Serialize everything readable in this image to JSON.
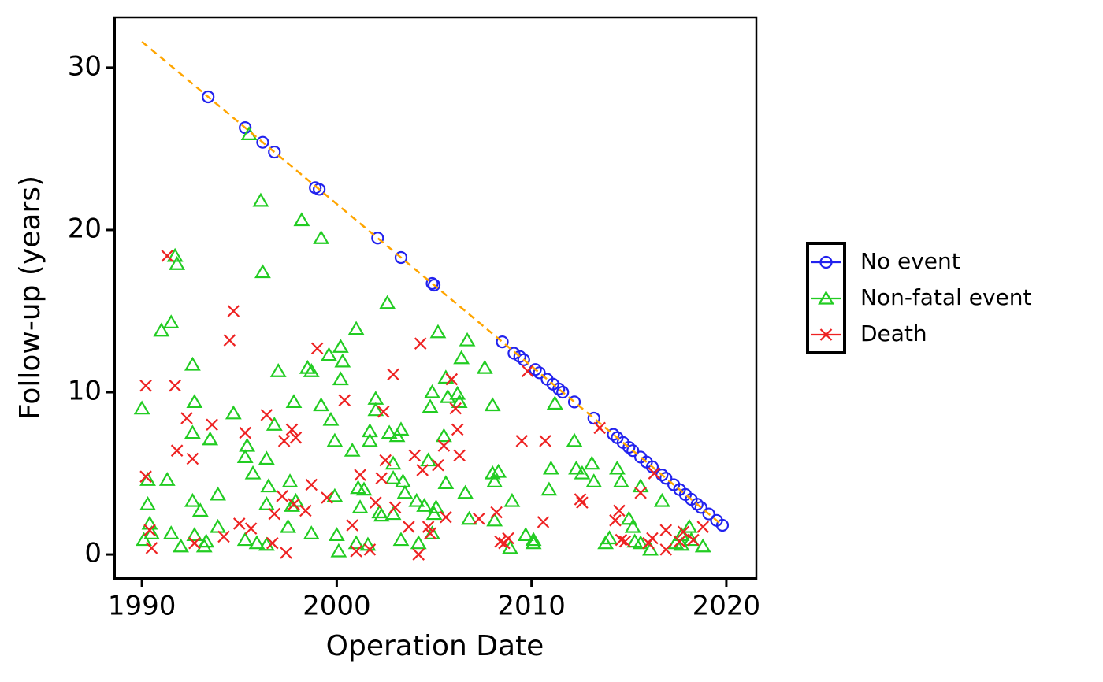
{
  "chart_data": {
    "type": "scatter",
    "x_label": "Operation Date",
    "y_label": "Follow-up (years)",
    "xlim": [
      1988.58,
      2021.54
    ],
    "ylim": [
      -1.5,
      33.1
    ],
    "xticks": [
      1990,
      2000,
      2010,
      2020
    ],
    "yticks": [
      0,
      10,
      20,
      30
    ],
    "legend_position": "right",
    "reference_line": {
      "color": "#ffa500",
      "dash": true,
      "x": [
        1990,
        2019.8
      ],
      "y": [
        31.6,
        1.8
      ]
    },
    "series": [
      {
        "name": "No event",
        "color": "#2222ee",
        "marker": "circle",
        "x": [
          1993.4,
          1995.3,
          1996.2,
          1996.8,
          1998.9,
          1999.1,
          2002.1,
          2003.3,
          2004.9,
          2005.0,
          2008.5,
          2009.1,
          2009.4,
          2009.6,
          2010.2,
          2010.4,
          2010.8,
          2011.1,
          2011.4,
          2011.6,
          2012.2,
          2013.2,
          2014.2,
          2014.4,
          2014.7,
          2015.0,
          2015.2,
          2015.6,
          2015.9,
          2016.2,
          2016.7,
          2016.9,
          2017.3,
          2017.6,
          2017.9,
          2018.2,
          2018.5,
          2018.7,
          2019.1,
          2019.5,
          2019.8
        ],
        "values": [
          28.2,
          26.3,
          25.4,
          24.8,
          22.6,
          22.5,
          19.5,
          18.3,
          16.7,
          16.6,
          13.1,
          12.4,
          12.2,
          12.0,
          11.4,
          11.2,
          10.8,
          10.5,
          10.2,
          10.0,
          9.4,
          8.4,
          7.4,
          7.2,
          6.9,
          6.6,
          6.4,
          6.0,
          5.7,
          5.4,
          4.9,
          4.7,
          4.3,
          4.0,
          3.7,
          3.4,
          3.1,
          2.9,
          2.5,
          2.1,
          1.8
        ]
      },
      {
        "name": "Non-fatal event",
        "color": "#22cc22",
        "marker": "triangle",
        "x": [
          1990.0,
          1990.3,
          1990.4,
          1990.1,
          1990.5,
          1990.3,
          1991.0,
          1991.3,
          1991.5,
          1991.7,
          1991.8,
          1991.5,
          1992.0,
          1992.6,
          1992.7,
          1992.6,
          1992.6,
          1993.0,
          1992.7,
          1993.2,
          1993.3,
          1993.5,
          1993.9,
          1993.9,
          1994.7,
          1995.5,
          1995.3,
          1995.4,
          1995.3,
          1995.7,
          1995.9,
          1996.1,
          1996.2,
          1996.4,
          1996.4,
          1996.4,
          1996.5,
          1996.8,
          1997.0,
          1997.5,
          1997.7,
          1997.8,
          1997.9,
          1997.6,
          1998.2,
          1998.5,
          1998.7,
          1998.7,
          1999.2,
          1999.2,
          1999.6,
          1999.7,
          1999.9,
          1999.9,
          2000.0,
          2000.2,
          2000.3,
          2000.2,
          2000.1,
          2000.8,
          2001.0,
          2001.0,
          2001.1,
          2001.2,
          2001.4,
          2001.6,
          2001.7,
          2001.7,
          2002.0,
          2002.0,
          2002.2,
          2002.3,
          2002.6,
          2002.7,
          2002.9,
          2002.9,
          2002.9,
          2003.1,
          2003.3,
          2003.4,
          2003.5,
          2003.3,
          2004.1,
          2004.2,
          2004.5,
          2004.7,
          2004.9,
          2004.8,
          2005.0,
          2004.9,
          2005.2,
          2005.1,
          2005.5,
          2005.6,
          2005.6,
          2005.7,
          2006.2,
          2006.3,
          2006.4,
          2006.6,
          2006.7,
          2006.8,
          2007.6,
          2008.0,
          2008.0,
          2008.1,
          2008.3,
          2008.1,
          2009.0,
          2008.9,
          2009.7,
          2010.1,
          2010.1,
          2010.9,
          2011.0,
          2011.2,
          2012.2,
          2012.3,
          2012.6,
          2013.1,
          2013.2,
          2013.8,
          2014.0,
          2014.4,
          2014.6,
          2015.0,
          2015.2,
          2015.3,
          2015.6,
          2015.6,
          2016.1,
          2016.7,
          2017.4,
          2017.7,
          2017.7,
          2018.1,
          2018.2,
          2018.8
        ],
        "values": [
          9.0,
          3.1,
          1.9,
          0.9,
          1.3,
          4.6,
          13.8,
          4.6,
          14.3,
          18.4,
          17.9,
          1.3,
          0.5,
          11.7,
          9.4,
          7.5,
          3.3,
          2.7,
          1.2,
          0.5,
          0.8,
          7.1,
          3.7,
          1.7,
          8.7,
          25.9,
          6.0,
          6.7,
          0.9,
          5.0,
          0.7,
          21.8,
          17.4,
          5.9,
          3.1,
          0.6,
          4.2,
          8.0,
          11.3,
          1.7,
          3.0,
          9.4,
          3.3,
          4.5,
          20.6,
          11.5,
          11.3,
          1.3,
          19.5,
          9.2,
          12.3,
          8.3,
          3.6,
          7.0,
          1.2,
          12.8,
          11.9,
          10.8,
          0.2,
          6.4,
          0.7,
          13.9,
          4.1,
          2.9,
          4.0,
          0.6,
          7.0,
          7.6,
          9.6,
          8.9,
          2.6,
          2.4,
          15.5,
          7.5,
          5.6,
          4.7,
          2.5,
          7.3,
          7.7,
          4.5,
          3.8,
          0.9,
          3.3,
          0.7,
          3.0,
          5.8,
          10.0,
          9.1,
          2.5,
          1.3,
          13.7,
          2.9,
          7.3,
          10.9,
          4.4,
          9.7,
          9.9,
          9.4,
          12.1,
          3.8,
          13.2,
          2.2,
          11.5,
          9.2,
          5.0,
          4.5,
          5.1,
          2.1,
          3.3,
          0.4,
          1.2,
          0.7,
          0.9,
          4.0,
          5.3,
          9.3,
          7.0,
          5.3,
          5.0,
          5.6,
          4.5,
          0.7,
          1.0,
          5.3,
          4.5,
          2.2,
          1.7,
          0.8,
          0.7,
          4.2,
          0.3,
          3.3,
          0.7,
          1.2,
          0.6,
          1.7,
          0.9,
          0.5
        ]
      },
      {
        "name": "Death",
        "color": "#ee2222",
        "marker": "x",
        "x": [
          1990.2,
          1990.2,
          1990.4,
          1990.5,
          1991.3,
          1991.7,
          1991.8,
          1992.3,
          1992.6,
          1992.7,
          1993.6,
          1994.2,
          1994.5,
          1994.7,
          1995.0,
          1995.3,
          1995.6,
          1996.4,
          1996.7,
          1996.8,
          1997.2,
          1997.3,
          1997.4,
          1997.7,
          1997.9,
          1997.8,
          1998.4,
          1998.7,
          1999.0,
          1999.5,
          2000.4,
          2000.8,
          2001.0,
          2001.2,
          2001.7,
          2002.0,
          2002.3,
          2002.4,
          2002.5,
          2002.9,
          2003.0,
          2003.7,
          2004.0,
          2004.2,
          2004.3,
          2004.4,
          2004.7,
          2004.8,
          2005.2,
          2005.5,
          2005.6,
          2005.9,
          2006.1,
          2006.2,
          2006.3,
          2007.3,
          2008.2,
          2008.4,
          2008.6,
          2008.8,
          2009.5,
          2009.8,
          2010.6,
          2010.7,
          2012.5,
          2012.6,
          2013.5,
          2014.3,
          2014.5,
          2014.6,
          2014.8,
          2015.6,
          2016.0,
          2016.2,
          2016.3,
          2016.9,
          2016.9,
          2017.6,
          2017.8,
          2018.3,
          2018.8
        ],
        "values": [
          10.4,
          4.8,
          1.5,
          0.4,
          18.4,
          10.4,
          6.4,
          8.4,
          5.9,
          0.7,
          8.0,
          1.1,
          13.2,
          15.0,
          1.9,
          7.5,
          1.6,
          8.6,
          0.7,
          2.5,
          3.6,
          7.0,
          0.1,
          7.7,
          7.2,
          3.1,
          2.7,
          4.3,
          12.7,
          3.5,
          9.5,
          1.8,
          0.2,
          4.9,
          0.3,
          3.2,
          4.7,
          8.8,
          5.8,
          11.1,
          2.9,
          1.7,
          6.1,
          0.0,
          13.0,
          5.2,
          1.7,
          1.3,
          5.5,
          6.7,
          2.3,
          10.8,
          9.0,
          7.7,
          6.1,
          2.2,
          2.6,
          0.8,
          0.7,
          1.0,
          7.0,
          11.3,
          2.0,
          7.0,
          3.4,
          3.2,
          7.8,
          2.1,
          2.7,
          0.9,
          0.8,
          3.8,
          0.7,
          1.0,
          5.0,
          1.5,
          0.3,
          0.8,
          1.4,
          0.9,
          1.7
        ]
      }
    ]
  }
}
